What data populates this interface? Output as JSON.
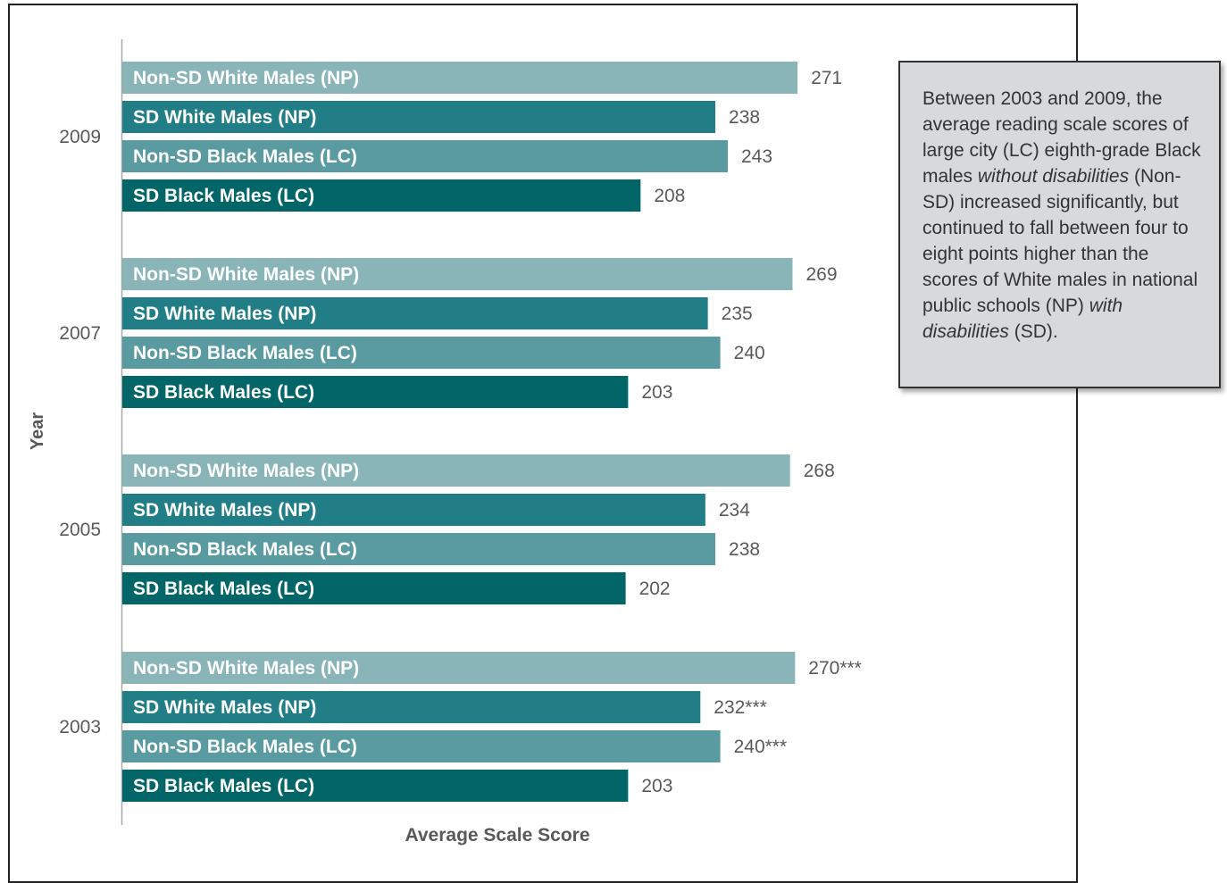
{
  "chart_data": {
    "type": "bar",
    "orientation": "horizontal",
    "xlabel": "Average Scale Score",
    "ylabel": "Year",
    "colors": {
      "Non-SD White Males (NP)": "#8ab5b8",
      "SD White Males (NP)": "#217e87",
      "Non-SD Black Males (LC)": "#5a9aa1",
      "SD Black Males (LC)": "#026669"
    },
    "groups": [
      {
        "year": "2009",
        "bars": [
          {
            "label": "Non-SD White Males (NP)",
            "value": 271,
            "display": "271"
          },
          {
            "label": "SD White Males (NP)",
            "value": 238,
            "display": "238"
          },
          {
            "label": "Non-SD Black Males (LC)",
            "value": 243,
            "display": "243"
          },
          {
            "label": "SD Black Males (LC)",
            "value": 208,
            "display": "208"
          }
        ]
      },
      {
        "year": "2007",
        "bars": [
          {
            "label": "Non-SD White Males (NP)",
            "value": 269,
            "display": "269"
          },
          {
            "label": "SD White Males (NP)",
            "value": 235,
            "display": "235"
          },
          {
            "label": "Non-SD Black Males (LC)",
            "value": 240,
            "display": "240"
          },
          {
            "label": "SD Black Males (LC)",
            "value": 203,
            "display": "203"
          }
        ]
      },
      {
        "year": "2005",
        "bars": [
          {
            "label": "Non-SD White Males (NP)",
            "value": 268,
            "display": "268"
          },
          {
            "label": "SD White Males (NP)",
            "value": 234,
            "display": "234"
          },
          {
            "label": "Non-SD Black Males (LC)",
            "value": 238,
            "display": "238"
          },
          {
            "label": "SD Black Males (LC)",
            "value": 202,
            "display": "202"
          }
        ]
      },
      {
        "year": "2003",
        "bars": [
          {
            "label": "Non-SD White Males (NP)",
            "value": 270,
            "display": "270***"
          },
          {
            "label": "SD White Males (NP)",
            "value": 232,
            "display": "232***"
          },
          {
            "label": "Non-SD Black Males (LC)",
            "value": 240,
            "display": "240***"
          },
          {
            "label": "SD Black Males (LC)",
            "value": 203,
            "display": "203"
          }
        ]
      }
    ]
  },
  "callout": {
    "text_1": "Between 2003 and 2009, the average reading scale scores of large city (LC) eighth-grade Black males ",
    "emphasis_1": "without disabilities",
    "text_2": " (Non-SD) increased significantly, but continued to fall between four to eight points higher than the scores of White males in national public schools (NP) ",
    "emphasis_2": "with disabilities",
    "text_3": " (SD)."
  }
}
